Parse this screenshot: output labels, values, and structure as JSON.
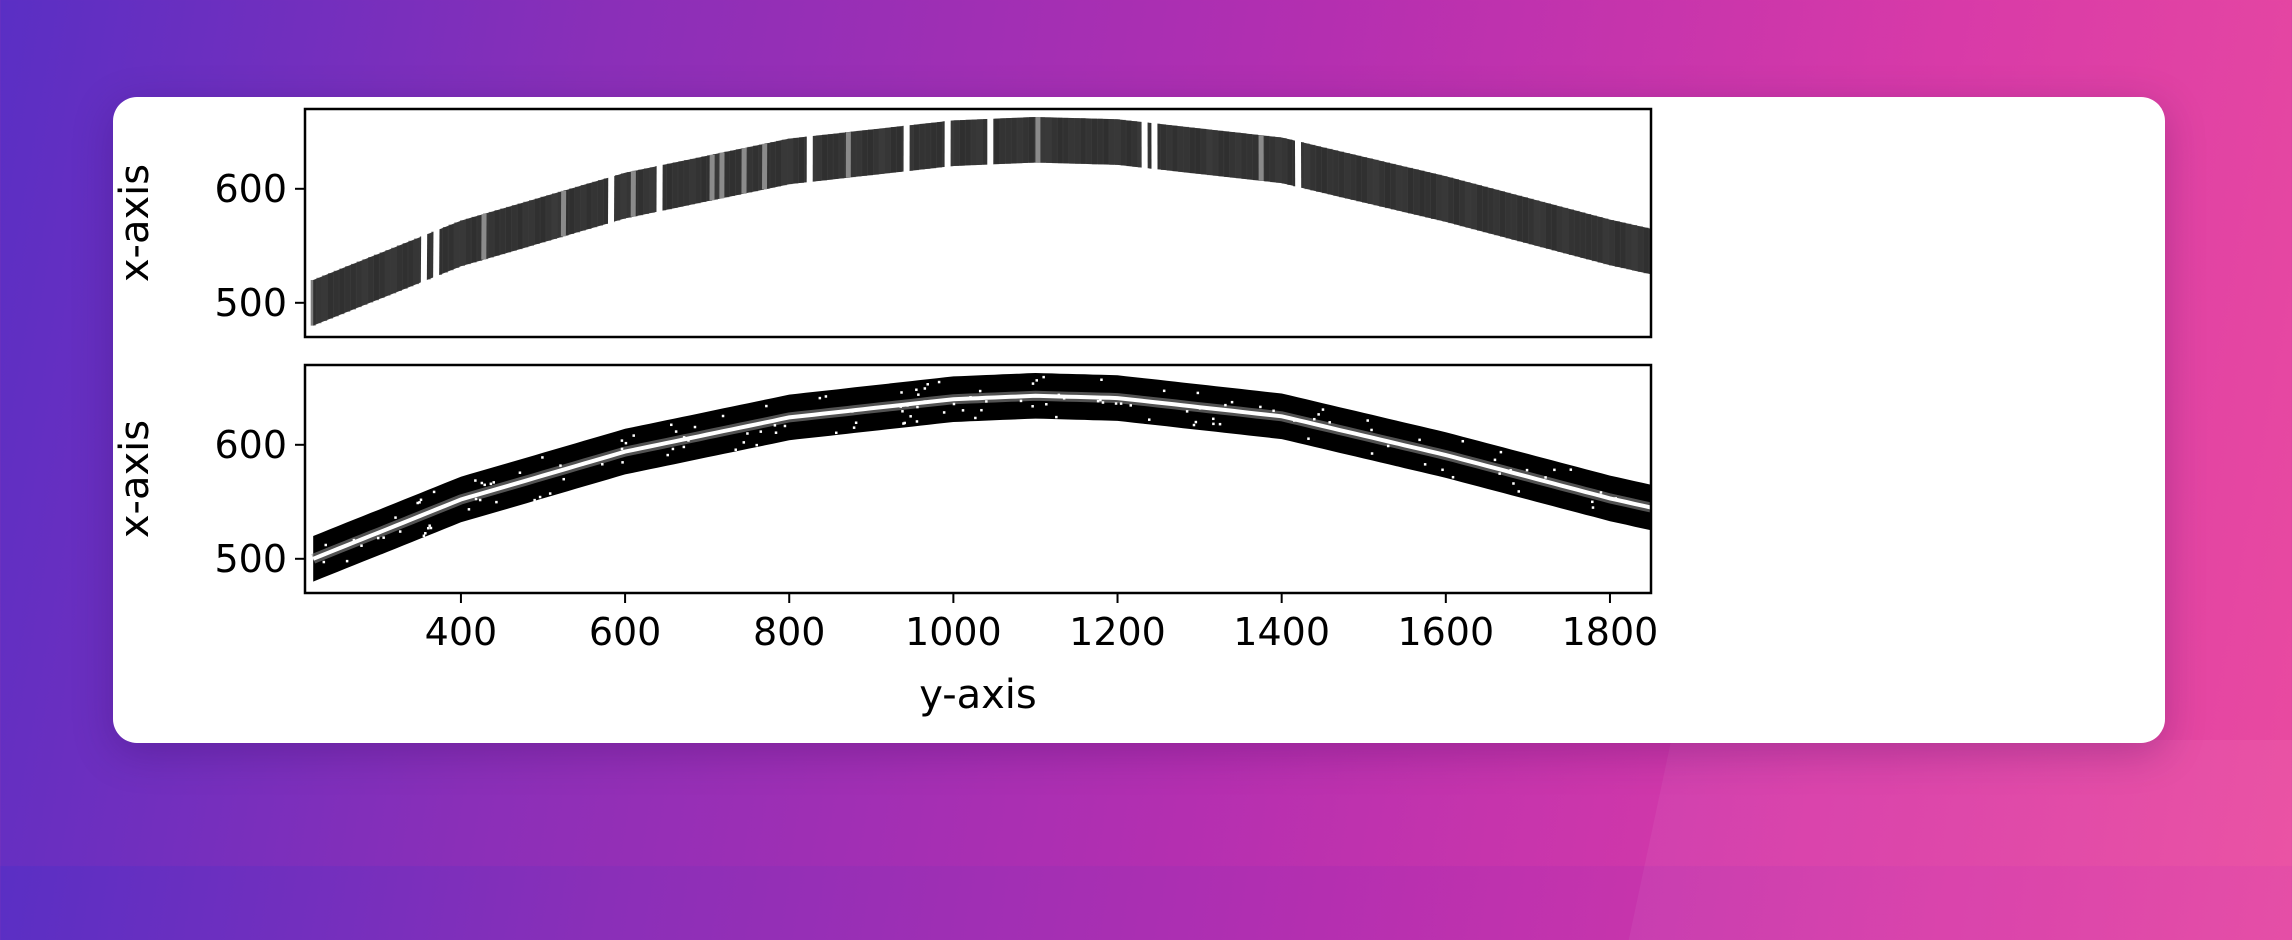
{
  "chart_data": [
    {
      "type": "heatmap",
      "panel": "top",
      "description_of_marks": "curved spectral order, grey band with bright emission/absorption lines",
      "ylabel": "x-axis",
      "xlim": [
        210,
        1850
      ],
      "ylim": [
        470,
        670
      ],
      "y_ticks": [
        {
          "value": 500,
          "label": "500"
        },
        {
          "value": 600,
          "label": "600"
        }
      ],
      "trace": {
        "y": [
          220,
          400,
          600,
          800,
          1000,
          1100,
          1200,
          1400,
          1600,
          1800,
          1850
        ],
        "x_center": [
          500,
          552,
          594,
          624,
          640,
          643,
          641,
          625,
          591,
          553,
          545
        ]
      },
      "band_width": 40,
      "lines": [
        {
          "y": 355,
          "kind": "gap"
        },
        {
          "y": 370,
          "kind": "gap"
        },
        {
          "y": 428,
          "kind": "bright"
        },
        {
          "y": 525,
          "kind": "bright"
        },
        {
          "y": 583,
          "kind": "gap"
        },
        {
          "y": 610,
          "kind": "bright"
        },
        {
          "y": 642,
          "kind": "gap"
        },
        {
          "y": 706,
          "kind": "bright"
        },
        {
          "y": 718,
          "kind": "bright"
        },
        {
          "y": 745,
          "kind": "bright"
        },
        {
          "y": 770,
          "kind": "bright"
        },
        {
          "y": 825,
          "kind": "gap"
        },
        {
          "y": 872,
          "kind": "bright"
        },
        {
          "y": 943,
          "kind": "gap"
        },
        {
          "y": 993,
          "kind": "gap"
        },
        {
          "y": 1045,
          "kind": "gap"
        },
        {
          "y": 1103,
          "kind": "bright"
        },
        {
          "y": 1233,
          "kind": "gap"
        },
        {
          "y": 1245,
          "kind": "gap"
        },
        {
          "y": 1375,
          "kind": "bright"
        },
        {
          "y": 1420,
          "kind": "gap"
        }
      ]
    },
    {
      "type": "heatmap",
      "panel": "bottom",
      "description_of_marks": "curved black order with bright central trace and scattered bright pixels",
      "xlabel": "y-axis",
      "ylabel": "x-axis",
      "xlim": [
        210,
        1850
      ],
      "ylim": [
        470,
        670
      ],
      "x_ticks": [
        {
          "value": 400,
          "label": "400"
        },
        {
          "value": 600,
          "label": "600"
        },
        {
          "value": 800,
          "label": "800"
        },
        {
          "value": 1000,
          "label": "1000"
        },
        {
          "value": 1200,
          "label": "1200"
        },
        {
          "value": 1400,
          "label": "1400"
        },
        {
          "value": 1600,
          "label": "1600"
        },
        {
          "value": 1800,
          "label": "1800"
        }
      ],
      "y_ticks": [
        {
          "value": 500,
          "label": "500"
        },
        {
          "value": 600,
          "label": "600"
        }
      ],
      "trace": {
        "y": [
          220,
          400,
          600,
          800,
          1000,
          1100,
          1200,
          1400,
          1600,
          1800,
          1850
        ],
        "x_center": [
          500,
          552,
          594,
          624,
          640,
          643,
          641,
          625,
          591,
          553,
          545
        ]
      },
      "band_width": 40
    }
  ],
  "colors": {
    "band_grey": "#3a3a3a",
    "band_black": "#000000",
    "trace_white": "#ffffff",
    "frame": "#000000"
  }
}
